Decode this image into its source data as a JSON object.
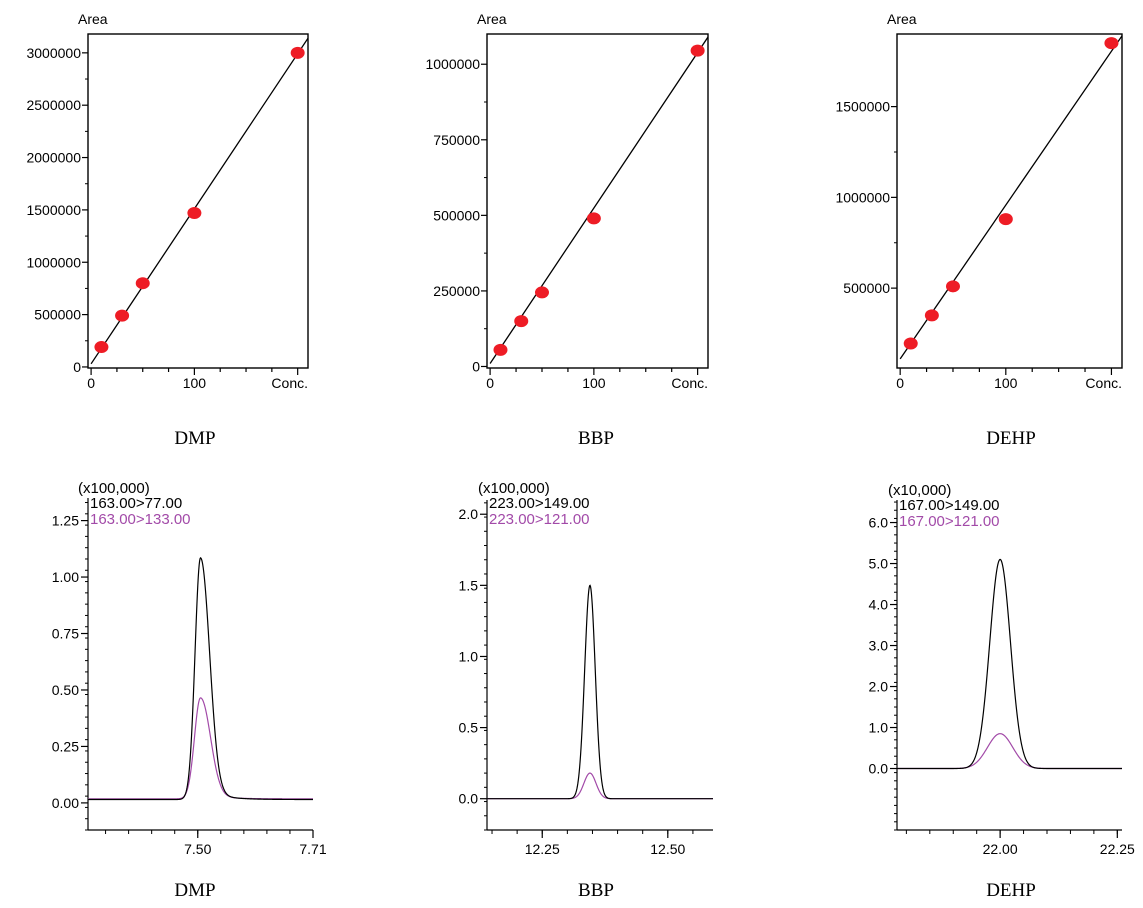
{
  "colors": {
    "point": "#ee1c25",
    "trace_black": "#000000",
    "trace_purple": "#a24aa8",
    "fit_line": "#000000"
  },
  "chart_data": [
    {
      "type": "scatter",
      "title": "DMP",
      "ylabel": "Area",
      "xlabel": "Conc.",
      "xlim": [
        -3,
        210
      ],
      "ylim": [
        -10000,
        3180000
      ],
      "yticks": [
        0,
        500000,
        1000000,
        1500000,
        2000000,
        2500000,
        3000000
      ],
      "ytick_labels": [
        "0",
        "500000",
        "1000000",
        "1500000",
        "2000000",
        "2500000",
        "3000000"
      ],
      "xticks": [
        0,
        100
      ],
      "xtick_labels": [
        "0",
        "100"
      ],
      "points": [
        {
          "x": 10,
          "y": 190000
        },
        {
          "x": 30,
          "y": 490000
        },
        {
          "x": 50,
          "y": 800000
        },
        {
          "x": 100,
          "y": 1470000
        },
        {
          "x": 200,
          "y": 3000000
        }
      ],
      "fit": [
        [
          0,
          30000
        ],
        [
          210,
          3140000
        ]
      ]
    },
    {
      "type": "scatter",
      "title": "BBP",
      "ylabel": "Area",
      "xlabel": "Conc.",
      "xlim": [
        -3,
        210
      ],
      "ylim": [
        -5000,
        1100000
      ],
      "yticks": [
        0,
        250000,
        500000,
        750000,
        1000000
      ],
      "ytick_labels": [
        "0",
        "250000",
        "500000",
        "750000",
        "1000000"
      ],
      "xticks": [
        0,
        100
      ],
      "xtick_labels": [
        "0",
        "100"
      ],
      "points": [
        {
          "x": 10,
          "y": 55000
        },
        {
          "x": 30,
          "y": 150000
        },
        {
          "x": 50,
          "y": 245000
        },
        {
          "x": 100,
          "y": 490000
        },
        {
          "x": 200,
          "y": 1045000
        }
      ],
      "fit": [
        [
          0,
          10000
        ],
        [
          210,
          1090000
        ]
      ]
    },
    {
      "type": "scatter",
      "title": "DEHP",
      "ylabel": "Area",
      "xlabel": "Conc.",
      "xlim": [
        -3,
        210
      ],
      "ylim": [
        60000,
        1900000
      ],
      "yticks": [
        500000,
        1000000,
        1500000
      ],
      "ytick_labels": [
        "500000",
        "1000000",
        "1500000"
      ],
      "xticks": [
        0,
        100
      ],
      "xtick_labels": [
        "0",
        "100"
      ],
      "points": [
        {
          "x": 10,
          "y": 195000
        },
        {
          "x": 30,
          "y": 350000
        },
        {
          "x": 50,
          "y": 510000
        },
        {
          "x": 100,
          "y": 880000
        },
        {
          "x": 200,
          "y": 1850000
        }
      ],
      "fit": [
        [
          0,
          110000
        ],
        [
          210,
          1890000
        ]
      ]
    },
    {
      "type": "line",
      "title": "DMP",
      "scale_label": "(x100,000)",
      "xlim": [
        7.3,
        7.71
      ],
      "ylim": [
        -0.12,
        1.35
      ],
      "yticks": [
        0,
        0.25,
        0.5,
        0.75,
        1.0,
        1.25
      ],
      "ytick_labels": [
        "0.00",
        "0.25",
        "0.50",
        "0.75",
        "1.00",
        "1.25"
      ],
      "xticks": [
        7.5,
        7.71
      ],
      "xtick_labels": [
        "7.50",
        "7.71"
      ],
      "series": [
        {
          "name": "163.00>77.00",
          "center": 7.505,
          "sigma": 0.01,
          "baseline": 0.015,
          "height": 1.085,
          "tail": 0.06
        },
        {
          "name": "163.00>133.00",
          "center": 7.505,
          "sigma": 0.011,
          "baseline": 0.018,
          "height": 0.465,
          "tail": 0.03
        }
      ]
    },
    {
      "type": "line",
      "title": "BBP",
      "scale_label": "(x100,000)",
      "xlim": [
        12.14,
        12.59
      ],
      "ylim": [
        -0.22,
        2.1
      ],
      "yticks": [
        0,
        0.5,
        1.0,
        1.5,
        2.0
      ],
      "ytick_labels": [
        "0.0",
        "0.5",
        "1.0",
        "1.5",
        "2.0"
      ],
      "xticks": [
        12.25,
        12.5
      ],
      "xtick_labels": [
        "12.25",
        "12.50"
      ],
      "series": [
        {
          "name": "223.00>149.00",
          "center": 12.345,
          "sigma": 0.0105,
          "baseline": 0.0,
          "height": 1.5,
          "tail": 0.0
        },
        {
          "name": "223.00>121.00",
          "center": 12.345,
          "sigma": 0.012,
          "baseline": 0.0,
          "height": 0.18,
          "tail": 0.0
        }
      ]
    },
    {
      "type": "line",
      "title": "DEHP",
      "scale_label": "(x10,000)",
      "xlim": [
        21.78,
        22.26
      ],
      "ylim": [
        -1.5,
        6.55
      ],
      "yticks": [
        0,
        1,
        2,
        3,
        4,
        5,
        6
      ],
      "ytick_labels": [
        "0.0",
        "1.0",
        "2.0",
        "3.0",
        "4.0",
        "5.0",
        "6.0"
      ],
      "xticks": [
        22.0,
        22.25
      ],
      "xtick_labels": [
        "22.00",
        "22.25"
      ],
      "series": [
        {
          "name": "167.00>149.00",
          "center": 22.0,
          "sigma": 0.022,
          "baseline": 0.0,
          "height": 5.1,
          "tail": 0.0
        },
        {
          "name": "167.00>121.00",
          "center": 22.0,
          "sigma": 0.027,
          "baseline": 0.0,
          "height": 0.85,
          "tail": 0.0
        }
      ]
    }
  ]
}
